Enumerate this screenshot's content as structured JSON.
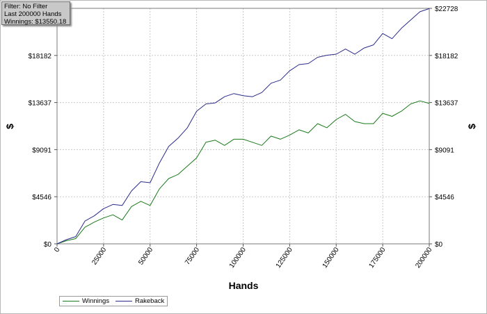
{
  "info": {
    "filter": "Filter: No Filter",
    "last": "Last  200000 Hands",
    "winnings": "Winnings: $13550.18"
  },
  "colors": {
    "winnings": "#1a7a1a",
    "rakeback": "#2a2a8a",
    "grid": "#c8c8c8"
  },
  "chart_data": {
    "type": "line",
    "xlabel": "Hands",
    "ylabel": "$",
    "xlim": [
      0,
      200000
    ],
    "ylim": [
      0,
      22728
    ],
    "x_ticks": [
      0,
      25000,
      50000,
      75000,
      100000,
      125000,
      150000,
      175000,
      200000
    ],
    "x_tick_labels": [
      "0",
      "25000",
      "50000",
      "75000",
      "100000",
      "125000",
      "150000",
      "175000",
      "200000"
    ],
    "y_ticks": [
      0,
      4546,
      9091,
      13637,
      18182,
      22728
    ],
    "y_tick_labels": [
      "$0",
      "$4546",
      "$9091",
      "$13637",
      "$18182",
      "$22728"
    ],
    "grid": true,
    "legend": "bottom-left",
    "x": [
      0,
      5000,
      10000,
      15000,
      20000,
      25000,
      30000,
      35000,
      40000,
      45000,
      50000,
      55000,
      60000,
      65000,
      70000,
      75000,
      80000,
      85000,
      90000,
      95000,
      100000,
      105000,
      110000,
      115000,
      120000,
      125000,
      130000,
      135000,
      140000,
      145000,
      150000,
      155000,
      160000,
      165000,
      170000,
      175000,
      180000,
      185000,
      190000,
      195000,
      200000
    ],
    "series": [
      {
        "name": "Winnings",
        "color": "#1a7a1a",
        "values": [
          0,
          300,
          500,
          1600,
          2100,
          2500,
          2800,
          2300,
          3600,
          4100,
          3700,
          5300,
          6300,
          6700,
          7500,
          8300,
          9800,
          10000,
          9500,
          10100,
          10100,
          9800,
          9500,
          10400,
          10100,
          10500,
          11000,
          10700,
          11600,
          11200,
          12000,
          12500,
          11800,
          11600,
          11600,
          12600,
          12300,
          12800,
          13500,
          13800,
          13550
        ]
      },
      {
        "name": "Rakeback",
        "color": "#2a2a8a",
        "values": [
          0,
          400,
          700,
          2200,
          2700,
          3400,
          3800,
          3700,
          5100,
          6000,
          5900,
          7800,
          9400,
          10200,
          11200,
          12800,
          13500,
          13600,
          14200,
          14500,
          14300,
          14200,
          14600,
          15500,
          15800,
          16700,
          17300,
          17400,
          18000,
          18200,
          18300,
          18800,
          18300,
          18900,
          19200,
          20300,
          19800,
          20800,
          21600,
          22400,
          22700
        ]
      }
    ]
  },
  "legend": {
    "winnings_label": "Winnings",
    "rakeback_label": "Rakeback"
  }
}
